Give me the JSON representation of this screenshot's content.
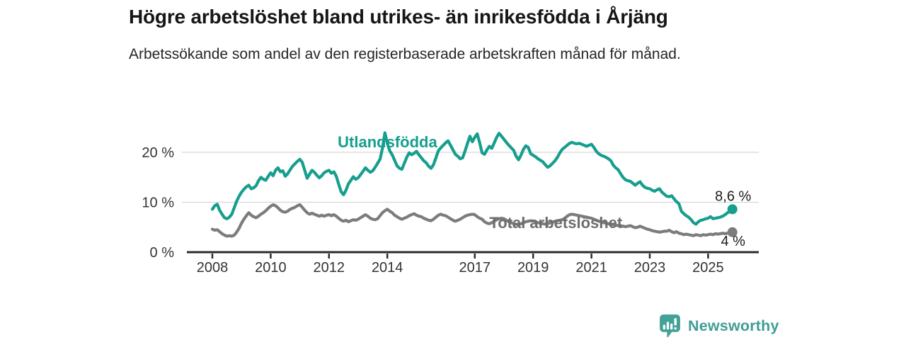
{
  "header": {
    "title": "Högre arbetslöshet bland utrikes- än inrikesfödda i Årjäng",
    "subtitle": "Arbetssökande som andel av den registerbaserade arbetskraften månad för månad."
  },
  "chart_data": {
    "type": "line",
    "unit": "%",
    "x_start_year": 2008,
    "points_per_year": 12,
    "x_ticks": [
      2008,
      2010,
      2012,
      2014,
      2017,
      2019,
      2021,
      2023,
      2025
    ],
    "y_ticks": [
      {
        "value": 0,
        "label": "0 %"
      },
      {
        "value": 10,
        "label": "10 %"
      },
      {
        "value": 20,
        "label": "20 %"
      }
    ],
    "ylim": [
      0,
      25
    ],
    "grid": "horizontal",
    "grid_color": "#d8d8d8",
    "axis_color": "#2b2b2b",
    "series": [
      {
        "id": "utlandsfodda",
        "name": "Utlandsfödda",
        "color": "#169e8e",
        "end_label": "8,6 %",
        "end_label_side": "above",
        "label": {
          "year": 2012.3,
          "value": 21.0
        },
        "values": [
          8.6,
          9.3,
          9.6,
          8.4,
          7.6,
          6.9,
          6.7,
          7.0,
          7.6,
          8.9,
          10.2,
          11.2,
          12.0,
          12.6,
          13.1,
          13.4,
          12.7,
          12.9,
          13.3,
          14.3,
          15.0,
          14.6,
          14.4,
          15.2,
          15.9,
          15.3,
          16.4,
          16.9,
          16.1,
          16.3,
          15.2,
          15.7,
          16.5,
          17.2,
          17.7,
          18.2,
          18.6,
          18.0,
          16.4,
          14.8,
          15.6,
          16.4,
          16.0,
          15.4,
          14.9,
          15.3,
          15.9,
          16.2,
          16.4,
          15.8,
          16.1,
          15.2,
          13.6,
          12.1,
          11.5,
          12.4,
          13.7,
          14.4,
          15.1,
          14.6,
          14.9,
          15.5,
          16.2,
          16.9,
          16.4,
          16.0,
          16.3,
          17.0,
          17.8,
          18.6,
          20.8,
          23.9,
          21.8,
          20.3,
          19.5,
          18.4,
          17.3,
          16.8,
          16.6,
          17.8,
          19.0,
          19.9,
          19.5,
          19.8,
          20.2,
          19.5,
          18.9,
          18.3,
          17.9,
          17.2,
          16.8,
          17.5,
          18.9,
          20.3,
          20.9,
          21.4,
          21.9,
          22.3,
          21.4,
          20.5,
          19.6,
          19.2,
          18.7,
          18.9,
          20.3,
          21.8,
          23.2,
          22.1,
          23.0,
          23.7,
          21.9,
          19.9,
          19.6,
          20.5,
          21.2,
          20.8,
          21.9,
          23.0,
          23.8,
          23.2,
          22.6,
          22.0,
          21.4,
          20.9,
          20.4,
          19.2,
          18.5,
          19.4,
          20.6,
          21.3,
          21.0,
          19.7,
          19.4,
          19.1,
          18.7,
          18.4,
          18.1,
          17.5,
          17.0,
          17.3,
          17.8,
          18.3,
          19.0,
          19.9,
          20.6,
          21.0,
          21.4,
          21.8,
          22.0,
          21.8,
          21.7,
          21.8,
          21.6,
          21.4,
          21.2,
          21.4,
          21.6,
          21.0,
          20.2,
          19.7,
          19.4,
          19.2,
          19.0,
          18.7,
          18.3,
          17.4,
          16.9,
          16.5,
          15.7,
          15.0,
          14.5,
          14.3,
          14.2,
          13.8,
          13.4,
          13.8,
          14.1,
          13.4,
          13.0,
          12.8,
          12.7,
          12.4,
          12.2,
          12.5,
          12.7,
          12.0,
          11.6,
          11.2,
          11.1,
          11.3,
          10.7,
          10.1,
          9.7,
          8.2,
          7.7,
          7.3,
          7.0,
          6.5,
          5.9,
          5.6,
          6.1,
          6.4,
          6.5,
          6.7,
          6.8,
          7.1,
          6.7,
          6.8,
          6.9,
          7.0,
          7.2,
          7.5,
          7.9,
          8.2,
          8.6
        ]
      },
      {
        "id": "total-arbetsloshet",
        "name": "Total arbetslöshet",
        "color": "#7c7c7c",
        "label_color": "#6d6d6d",
        "end_label": "4 %",
        "end_label_side": "below",
        "label": {
          "year": 2017.5,
          "value": 4.82
        },
        "values": [
          4.6,
          4.4,
          4.5,
          4.1,
          3.7,
          3.4,
          3.2,
          3.3,
          3.2,
          3.4,
          4.0,
          4.8,
          5.8,
          6.6,
          7.3,
          7.9,
          7.4,
          7.1,
          6.9,
          7.2,
          7.6,
          7.9,
          8.3,
          8.8,
          9.2,
          9.5,
          9.3,
          8.9,
          8.4,
          8.1,
          8.0,
          8.2,
          8.6,
          8.8,
          9.0,
          9.3,
          9.5,
          9.0,
          8.4,
          7.9,
          7.6,
          7.8,
          7.6,
          7.4,
          7.2,
          7.4,
          7.2,
          7.4,
          7.5,
          7.3,
          7.5,
          7.2,
          6.8,
          6.4,
          6.2,
          6.4,
          6.1,
          6.3,
          6.5,
          6.4,
          6.6,
          6.9,
          7.2,
          7.5,
          7.2,
          6.8,
          6.6,
          6.5,
          6.7,
          7.3,
          7.9,
          8.3,
          8.6,
          8.2,
          7.9,
          7.4,
          7.1,
          6.8,
          6.6,
          6.8,
          7.0,
          7.3,
          7.5,
          7.7,
          7.4,
          7.2,
          7.1,
          6.8,
          6.6,
          6.4,
          6.3,
          6.6,
          7.0,
          7.4,
          7.6,
          7.4,
          7.3,
          7.0,
          6.7,
          6.4,
          6.2,
          6.4,
          6.6,
          6.9,
          7.2,
          7.4,
          7.5,
          7.6,
          7.5,
          7.1,
          6.8,
          6.6,
          6.1,
          5.8,
          5.7,
          5.9,
          6.2,
          6.5,
          6.7,
          6.8,
          6.7,
          6.4,
          6.1,
          5.9,
          5.7,
          5.6,
          5.5,
          5.7,
          5.9,
          6.1,
          6.2,
          6.3,
          6.2,
          6.1,
          5.9,
          5.8,
          5.7,
          5.6,
          5.7,
          5.9,
          6.0,
          6.2,
          6.3,
          6.4,
          6.5,
          6.8,
          7.2,
          7.5,
          7.6,
          7.5,
          7.4,
          7.3,
          7.2,
          7.1,
          7.0,
          6.9,
          6.8,
          6.6,
          6.4,
          6.2,
          6.1,
          5.9,
          5.8,
          5.7,
          5.6,
          5.5,
          5.4,
          5.3,
          5.3,
          5.2,
          5.1,
          5.2,
          5.3,
          5.1,
          4.9,
          5.0,
          5.2,
          5.0,
          4.8,
          4.6,
          4.5,
          4.3,
          4.2,
          4.1,
          4.0,
          4.1,
          4.2,
          4.2,
          4.4,
          4.1,
          3.9,
          4.1,
          3.8,
          3.7,
          3.5,
          3.6,
          3.5,
          3.4,
          3.3,
          3.5,
          3.4,
          3.3,
          3.5,
          3.4,
          3.5,
          3.6,
          3.5,
          3.7,
          3.6,
          3.7,
          3.8,
          3.7,
          3.8,
          3.9,
          4.0
        ]
      }
    ]
  },
  "branding": {
    "logo_text": "Newsworthy",
    "logo_icon": "bar-chart-speech-bubble-icon",
    "color": "#3f9e95",
    "icon_color": "#43a298"
  }
}
